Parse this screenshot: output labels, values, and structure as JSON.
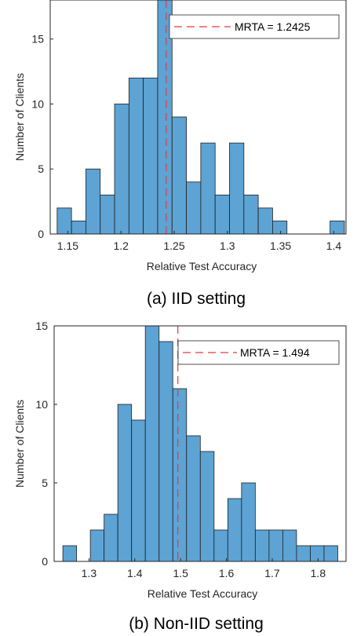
{
  "chart_data": [
    {
      "type": "bar",
      "caption": "(a) IID setting",
      "xlabel": "Relative Test Accuracy",
      "ylabel": "Number of Clients",
      "bin_start": 1.14,
      "bin_width": 0.0135,
      "values": [
        2,
        1,
        5,
        3,
        10,
        12,
        12,
        18,
        9,
        4,
        7,
        3,
        7,
        3,
        2,
        1,
        0,
        0,
        0,
        1
      ],
      "xlim": [
        1.1335,
        1.4115
      ],
      "ylim": [
        0,
        18
      ],
      "xticks": [
        1.15,
        1.2,
        1.25,
        1.3,
        1.35,
        1.4
      ],
      "xtick_labels": [
        "1.15",
        "1.2",
        "1.25",
        "1.3",
        "1.35",
        "1.4"
      ],
      "yticks": [
        0,
        5,
        10,
        15
      ],
      "ytick_labels": [
        "0",
        "5",
        "10",
        "15"
      ],
      "reference_line": {
        "value": 1.2425,
        "label": "MRTA = 1.2425"
      },
      "legend_position": "top-right",
      "colors": {
        "bar": "#5DA3D4",
        "edge": "#1f1f1f",
        "line": "#e8383c"
      }
    },
    {
      "type": "bar",
      "caption": "(b) Non-IID setting",
      "xlabel": "Relative Test Accuracy",
      "ylabel": "Number of Clients",
      "bin_start": 1.243,
      "bin_width": 0.03,
      "values": [
        1,
        0,
        2,
        3,
        10,
        9,
        15,
        14,
        11,
        8,
        7,
        2,
        4,
        5,
        2,
        2,
        2,
        1,
        1,
        1
      ],
      "xlim": [
        1.224,
        1.861
      ],
      "ylim": [
        0,
        15
      ],
      "xticks": [
        1.3,
        1.4,
        1.5,
        1.6,
        1.7,
        1.8
      ],
      "xtick_labels": [
        "1.3",
        "1.4",
        "1.5",
        "1.6",
        "1.7",
        "1.8"
      ],
      "yticks": [
        0,
        5,
        10,
        15
      ],
      "ytick_labels": [
        "0",
        "5",
        "10",
        "15"
      ],
      "reference_line": {
        "value": 1.494,
        "label": "MRTA = 1.494"
      },
      "legend_position": "top-right",
      "colors": {
        "bar": "#5DA3D4",
        "edge": "#1f1f1f",
        "line": "#e8383c"
      }
    }
  ]
}
